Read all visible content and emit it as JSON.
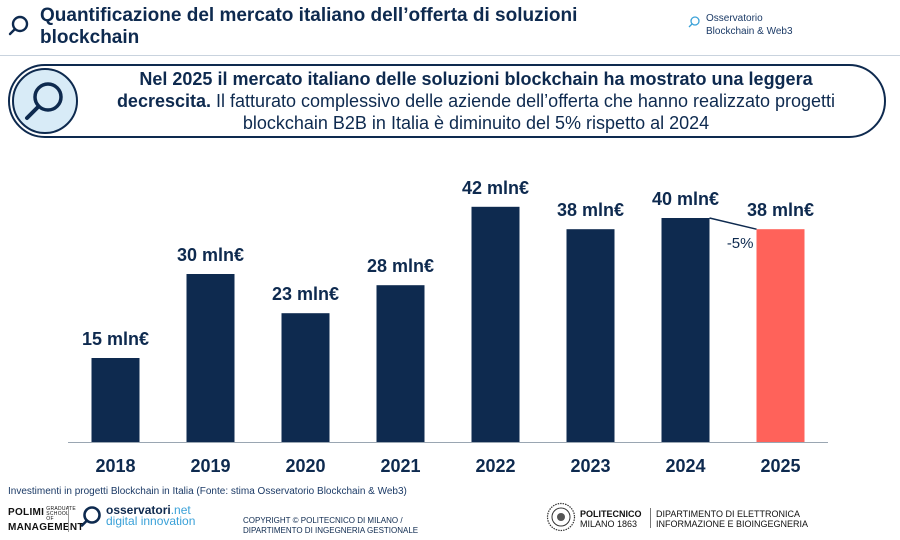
{
  "header": {
    "title": "Quantificazione del mercato italiano dell’offerta di soluzioni blockchain",
    "brand_line1": "Osservatorio",
    "brand_line2": "Blockchain & Web3"
  },
  "insight": {
    "bold": "Nel 2025 il mercato italiano delle soluzioni blockchain ha mostrato una leggera decrescita.",
    "rest": " Il fatturato complessivo delle aziende dell’offerta che hanno realizzato progetti blockchain B2B in Italia è diminuito del 5% rispetto al 2024"
  },
  "chart_data": {
    "type": "bar",
    "categories": [
      "2018",
      "2019",
      "2020",
      "2021",
      "2022",
      "2023",
      "2024",
      "2025"
    ],
    "values": [
      15,
      30,
      23,
      28,
      42,
      38,
      40,
      38
    ],
    "data_labels": [
      "15 mln€",
      "30 mln€",
      "23 mln€",
      "28 mln€",
      "42 mln€",
      "38 mln€",
      "40 mln€",
      "38 mln€"
    ],
    "highlight_index": 7,
    "colors": {
      "bar": "#0e2a4f",
      "highlight": "#ff625a",
      "axis": "#9aa6b2"
    },
    "annotation": {
      "text": "-5%",
      "from_index": 6,
      "to_index": 7
    },
    "ylim": [
      0,
      45
    ],
    "grid": false,
    "legend": "none"
  },
  "caption": "Investimenti in progetti Blockchain in Italia (Fonte: stima Osservatorio Blockchain & Web3)",
  "footer": {
    "polimi_line1": "POLIMI",
    "polimi_small": "GRADUATE SCHOOL OF",
    "polimi_line2": "MANAGEMENT",
    "osserv_line1a": "osservatori",
    "osserv_line1b": ".net",
    "osserv_line2": "digital innovation",
    "copyright_line1": "COPYRIGHT © POLITECNICO DI MILANO /",
    "copyright_line2": "DIPARTIMENTO DI INGEGNERIA GESTIONALE",
    "poli_name1": "POLITECNICO",
    "poli_name2": "MILANO 1863",
    "dept_line1": "DIPARTIMENTO DI ELETTRONICA",
    "dept_line2": "INFORMAZIONE E BIOINGEGNERIA"
  }
}
